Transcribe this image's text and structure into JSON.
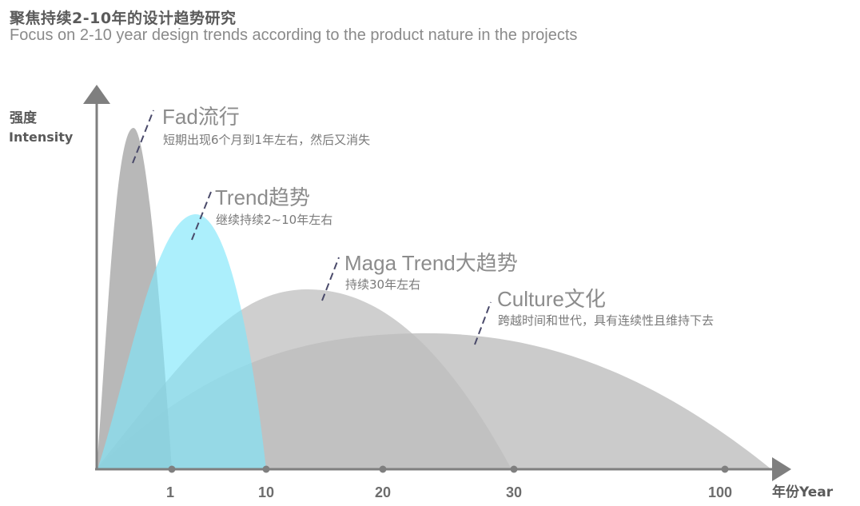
{
  "header": {
    "title_zh": "聚焦持续2-10年的设计趋势研究",
    "title_en": "Focus on 2-10 year design trends according to the product nature in the projects"
  },
  "axes": {
    "y_label_zh": "强度",
    "y_label_en": "Intensity",
    "x_label": "年份Year",
    "ticks": [
      "1",
      "10",
      "20",
      "30",
      "100"
    ]
  },
  "curves": [
    {
      "title": "Fad流行",
      "desc": "短期出现6个月到1年左右，然后又消失",
      "color": "#a6a6a6"
    },
    {
      "title": "Trend趋势",
      "desc": "继续持续2~10年左右",
      "color": "#8fe3f5"
    },
    {
      "title": "Maga Trend大趋势",
      "desc": "持续30年左右",
      "color": "#bfbfbf"
    },
    {
      "title": "Culture文化",
      "desc": "跨越时间和世代，具有连续性且维持下去",
      "color": "#bfbfbf"
    }
  ],
  "colors": {
    "axis": "#7f7f7f",
    "dash": "#4a4a6a"
  }
}
